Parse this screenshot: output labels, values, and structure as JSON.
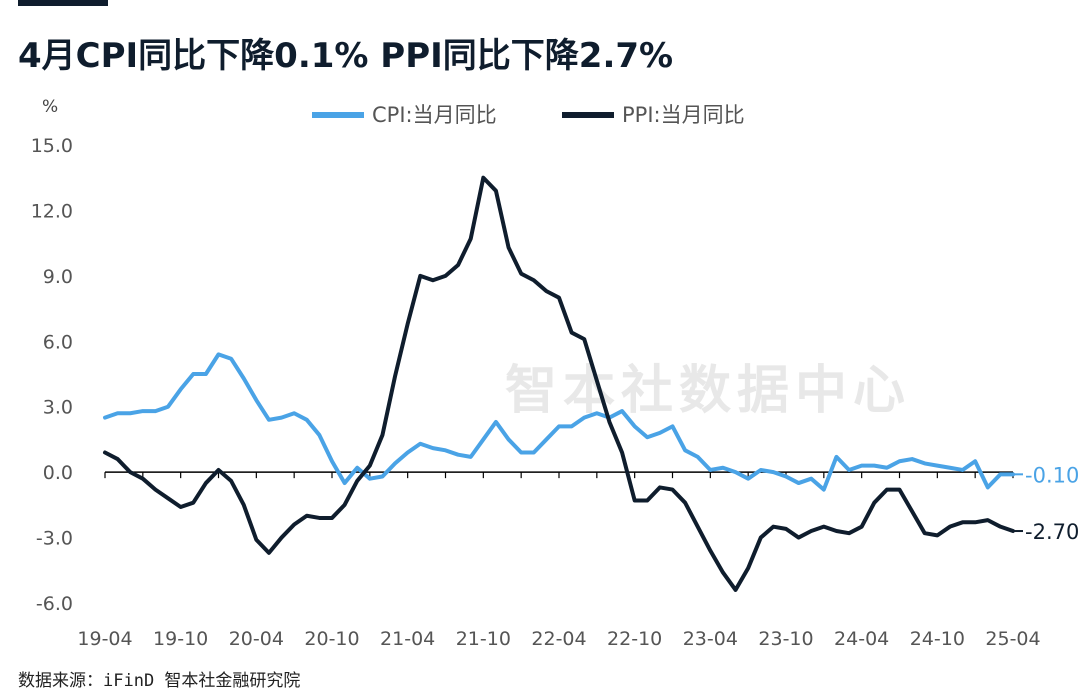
{
  "title": "4月CPI同比下降0.1% PPI同比下降2.7%",
  "source": "数据来源：iFinD 智本社金融研究院",
  "watermark": "智本社数据中心",
  "colors": {
    "cpi": "#4aa3e6",
    "ppi": "#0f1d2d",
    "axis": "#000000",
    "tick": "#555555"
  },
  "chart_data": {
    "type": "line",
    "ylabel": "%",
    "ylim": [
      -6.0,
      15.0
    ],
    "yticks": [
      "15.0",
      "12.0",
      "9.0",
      "6.0",
      "3.0",
      "0.0",
      "-3.0",
      "-6.0"
    ],
    "yticks_values": [
      15,
      12,
      9,
      6,
      3,
      0,
      -3,
      -6
    ],
    "xtick_labels": [
      "19-04",
      "19-10",
      "20-04",
      "20-10",
      "21-04",
      "21-10",
      "22-04",
      "22-10",
      "23-04",
      "23-10",
      "24-04",
      "24-10",
      "25-04"
    ],
    "xtick_index": [
      0,
      6,
      12,
      18,
      24,
      30,
      36,
      42,
      48,
      54,
      60,
      66,
      72
    ],
    "x_start": "2019-04",
    "x_end": "2025-04",
    "series": [
      {
        "name": "CPI:当月同比",
        "key": "cpi",
        "end_label": "-0.10",
        "values": [
          2.5,
          2.7,
          2.7,
          2.8,
          2.8,
          3.0,
          3.8,
          4.5,
          4.5,
          5.4,
          5.2,
          4.3,
          3.3,
          2.4,
          2.5,
          2.7,
          2.4,
          1.7,
          0.5,
          -0.5,
          0.2,
          -0.3,
          -0.2,
          0.4,
          0.9,
          1.3,
          1.1,
          1.0,
          0.8,
          0.7,
          1.5,
          2.3,
          1.5,
          0.9,
          0.9,
          1.5,
          2.1,
          2.1,
          2.5,
          2.7,
          2.5,
          2.8,
          2.1,
          1.6,
          1.8,
          2.1,
          1.0,
          0.7,
          0.1,
          0.2,
          0.0,
          -0.3,
          0.1,
          0.0,
          -0.2,
          -0.5,
          -0.3,
          -0.8,
          0.7,
          0.1,
          0.3,
          0.3,
          0.2,
          0.5,
          0.6,
          0.4,
          0.3,
          0.2,
          0.1,
          0.5,
          -0.7,
          -0.1,
          -0.1
        ]
      },
      {
        "name": "PPI:当月同比",
        "key": "ppi",
        "end_label": "-2.70",
        "values": [
          0.9,
          0.6,
          0.0,
          -0.3,
          -0.8,
          -1.2,
          -1.6,
          -1.4,
          -0.5,
          0.1,
          -0.4,
          -1.5,
          -3.1,
          -3.7,
          -3.0,
          -2.4,
          -2.0,
          -2.1,
          -2.1,
          -1.5,
          -0.4,
          0.3,
          1.7,
          4.4,
          6.8,
          9.0,
          8.8,
          9.0,
          9.5,
          10.7,
          13.5,
          12.9,
          10.3,
          9.1,
          8.8,
          8.3,
          8.0,
          6.4,
          6.1,
          4.2,
          2.3,
          0.9,
          -1.3,
          -1.3,
          -0.7,
          -0.8,
          -1.4,
          -2.5,
          -3.6,
          -4.6,
          -5.4,
          -4.4,
          -3.0,
          -2.5,
          -2.6,
          -3.0,
          -2.7,
          -2.5,
          -2.7,
          -2.8,
          -2.5,
          -1.4,
          -0.8,
          -0.8,
          -1.8,
          -2.8,
          -2.9,
          -2.5,
          -2.3,
          -2.3,
          -2.2,
          -2.5,
          -2.7
        ]
      }
    ]
  }
}
